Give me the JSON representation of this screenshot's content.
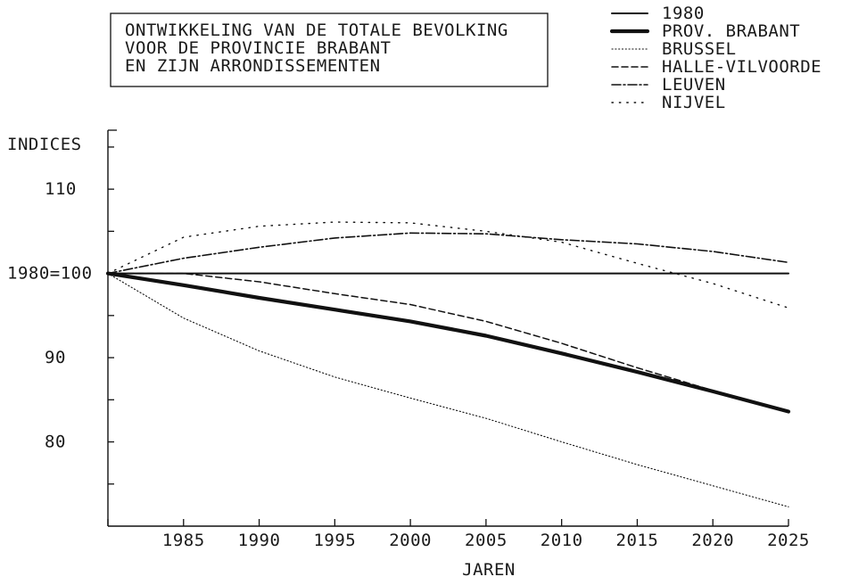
{
  "chart_data": {
    "type": "line",
    "title": "ONTWIKKELING VAN DE TOTALE BEVOLKING\nVOOR DE PROVINCIE BRABANT\nEN ZIJN ARRONDISSEMENTEN",
    "title_lines": [
      "ONTWIKKELING VAN DE TOTALE BEVOLKING",
      "VOOR DE PROVINCIE BRABANT",
      "EN ZIJN ARRONDISSEMENTEN"
    ],
    "xlabel": "JAREN",
    "ylabel": "INDICES",
    "x_ticks": [
      1985,
      1990,
      1995,
      2000,
      2005,
      2010,
      2015,
      2020,
      2025
    ],
    "y_ticks": [
      {
        "value": 110,
        "label": "110"
      },
      {
        "value": 100,
        "label": "1980=100"
      },
      {
        "value": 90,
        "label": "90"
      },
      {
        "value": 80,
        "label": "80"
      }
    ],
    "xlim": [
      1980,
      2025
    ],
    "ylim": [
      70,
      117
    ],
    "grid": false,
    "legend_position": "top-right",
    "x": [
      1980,
      1985,
      1990,
      1995,
      2000,
      2005,
      2010,
      2015,
      2020,
      2025
    ],
    "series": [
      {
        "name": "1980",
        "style": "thin-solid",
        "values": [
          100,
          100,
          100,
          100,
          100,
          100,
          100,
          100,
          100,
          100
        ]
      },
      {
        "name": "PROV. BRABANT",
        "style": "thick-solid",
        "values": [
          100,
          98.6,
          97.1,
          95.7,
          94.3,
          92.6,
          90.5,
          88.3,
          86.0,
          83.6
        ]
      },
      {
        "name": "BRUSSEL",
        "style": "fine-dotted",
        "values": [
          100,
          94.7,
          90.8,
          87.7,
          85.2,
          82.8,
          80.0,
          77.3,
          74.8,
          72.3
        ]
      },
      {
        "name": "HALLE-VILVOORDE",
        "style": "dashed",
        "values": [
          100,
          100,
          99.0,
          97.6,
          96.3,
          94.3,
          91.7,
          88.8,
          86.1,
          83.6
        ]
      },
      {
        "name": "LEUVEN",
        "style": "dash-dot",
        "values": [
          100,
          101.8,
          103.1,
          104.2,
          104.8,
          104.7,
          104.0,
          103.5,
          102.6,
          101.3
        ]
      },
      {
        "name": "NIJVEL",
        "style": "sparse-dotted",
        "values": [
          100,
          104.3,
          105.6,
          106.1,
          106.0,
          105.0,
          103.7,
          101.2,
          98.8,
          95.9
        ]
      }
    ]
  }
}
